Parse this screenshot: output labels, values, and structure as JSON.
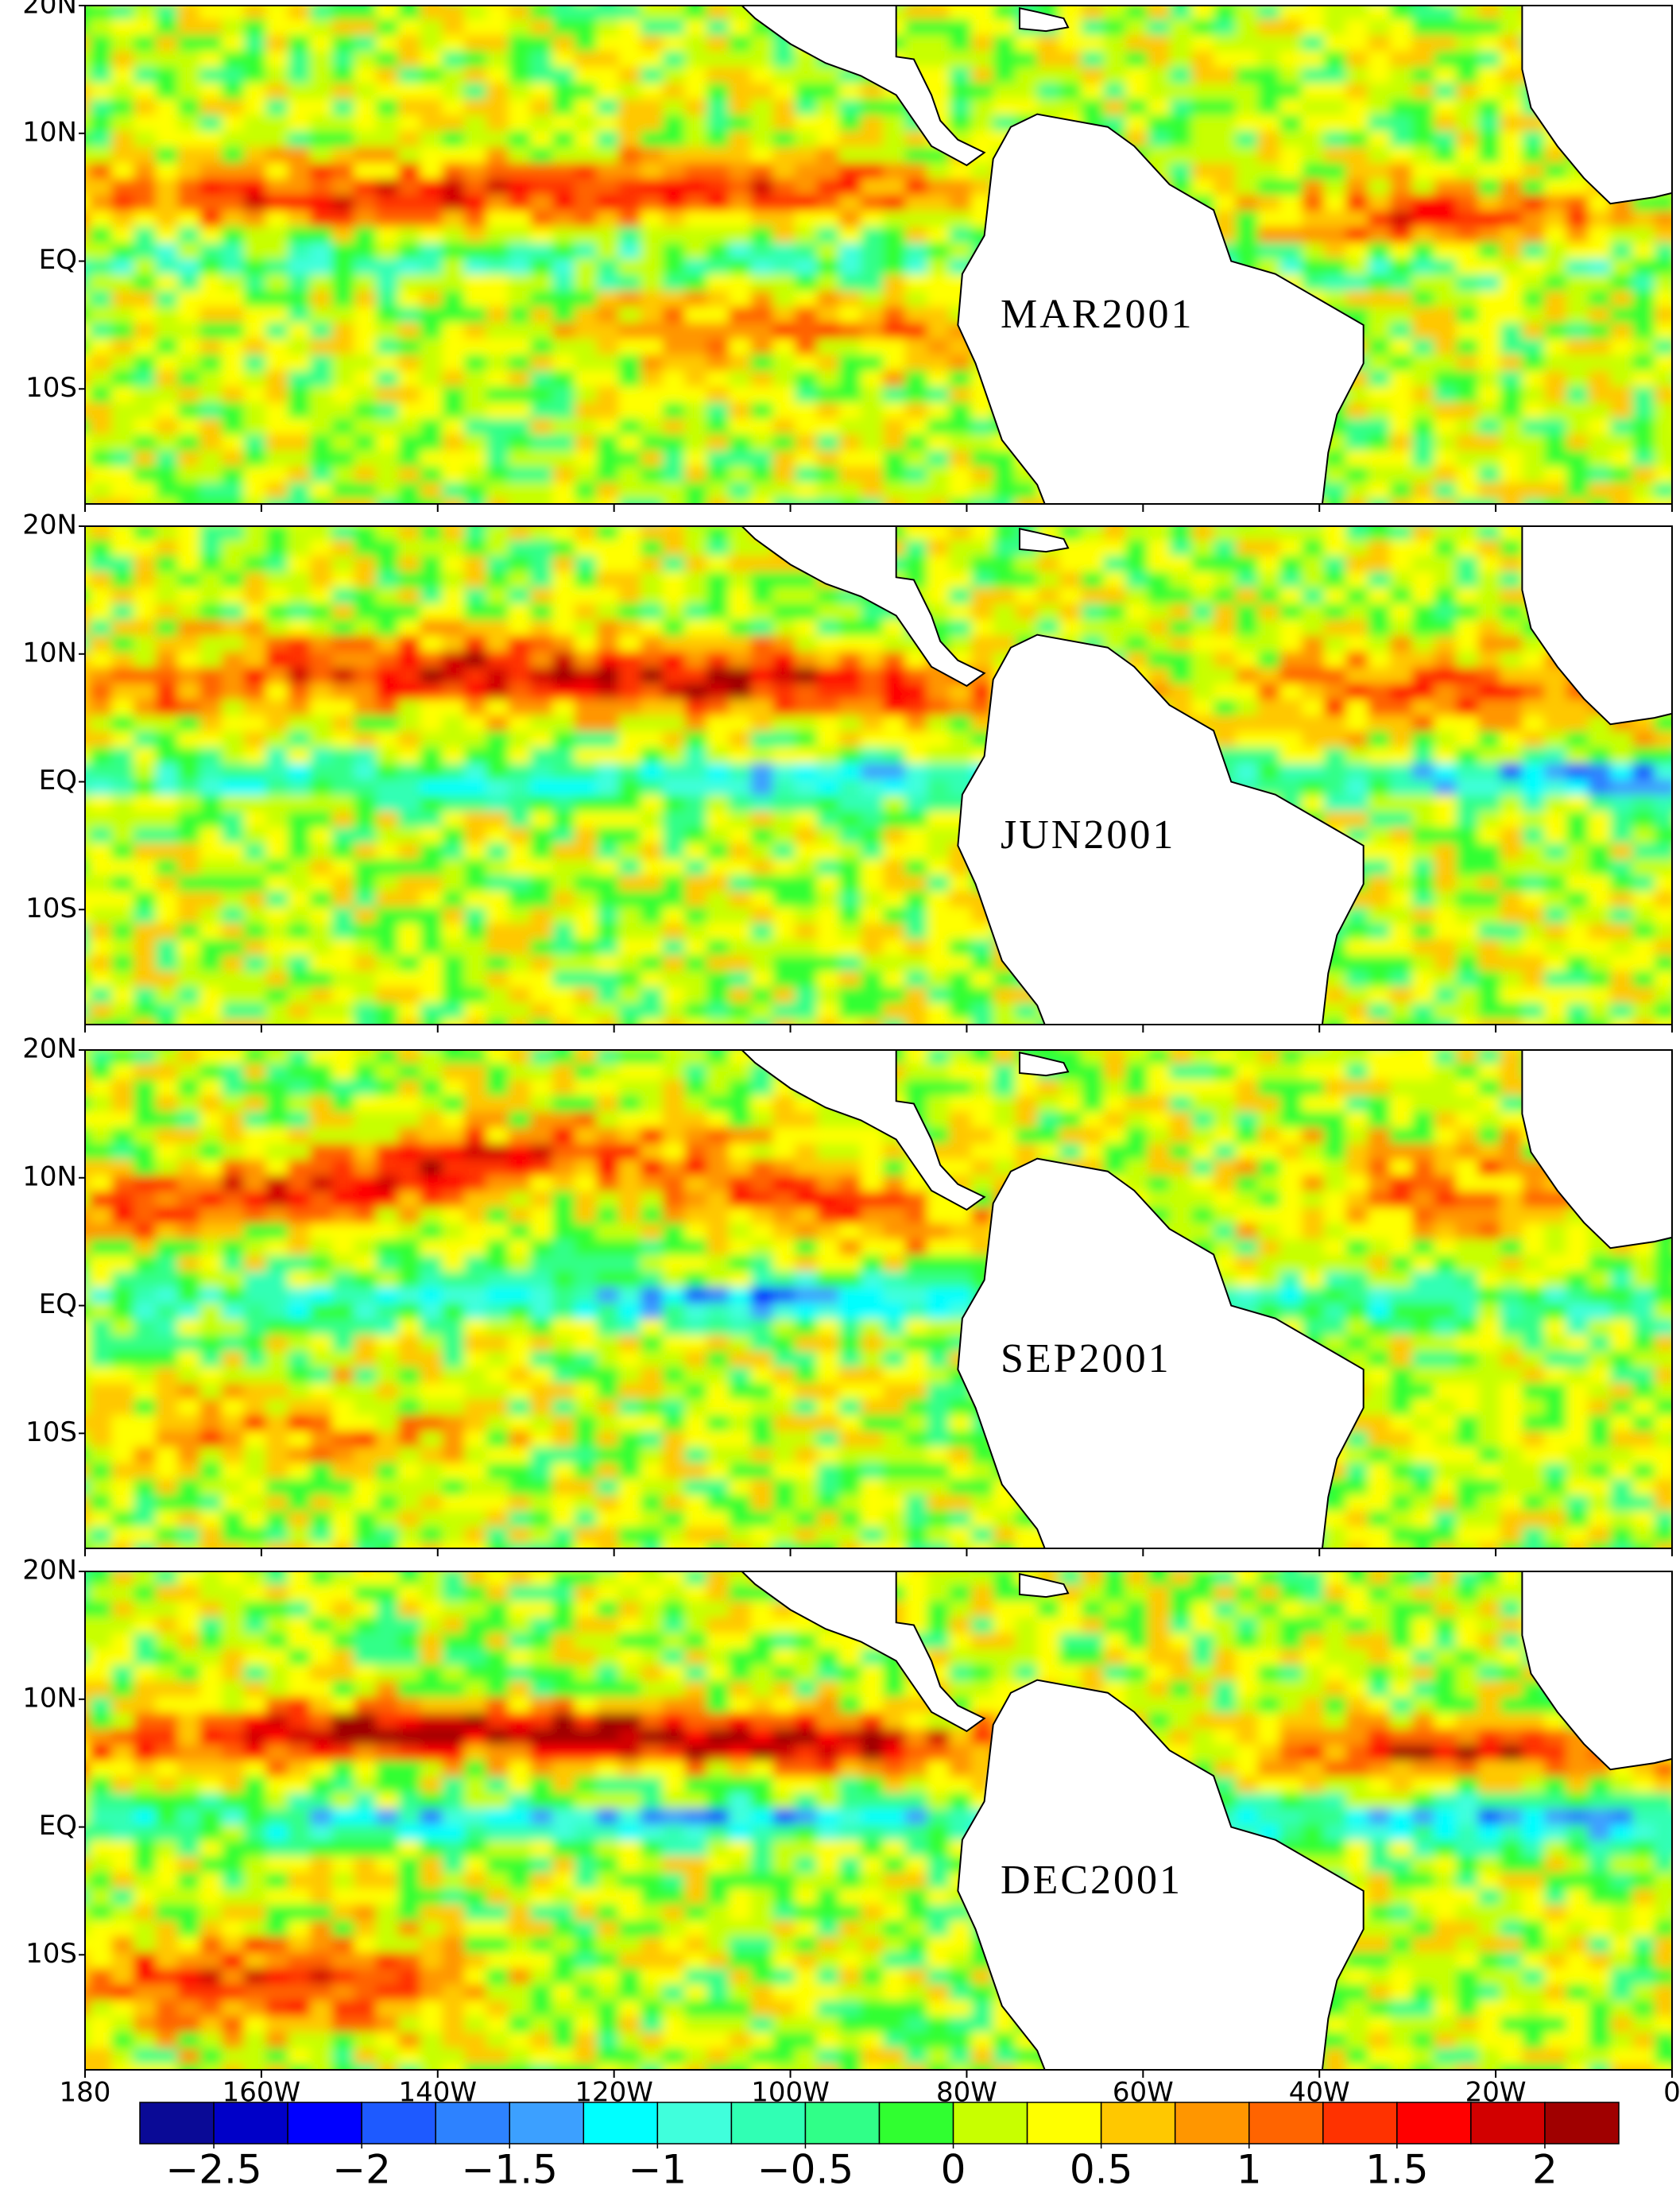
{
  "chart_data": {
    "type": "map",
    "panels": [
      {
        "title": "MAR2001"
      },
      {
        "title": "JUN2001"
      },
      {
        "title": "SEP2001"
      },
      {
        "title": "DEC2001"
      }
    ],
    "xlim": [
      -180,
      0
    ],
    "ylim": [
      -19,
      20
    ],
    "xticks": [
      {
        "value": -180,
        "label": "180"
      },
      {
        "value": -160,
        "label": "160W"
      },
      {
        "value": -140,
        "label": "140W"
      },
      {
        "value": -120,
        "label": "120W"
      },
      {
        "value": -100,
        "label": "100W"
      },
      {
        "value": -80,
        "label": "80W"
      },
      {
        "value": -60,
        "label": "60W"
      },
      {
        "value": -40,
        "label": "40W"
      },
      {
        "value": -20,
        "label": "20W"
      },
      0
    ],
    "yticks": [
      {
        "value": 20,
        "label": "20N"
      },
      {
        "value": 10,
        "label": "10N"
      },
      {
        "value": 0,
        "label": "EQ"
      },
      {
        "value": -10,
        "label": "10S"
      }
    ],
    "colorbar": {
      "lim": [
        -2.75,
        2.25
      ],
      "ticks": [
        {
          "value": -2.5,
          "label": "−2.5"
        },
        {
          "value": -2,
          "label": "−2"
        },
        {
          "value": -1.5,
          "label": "−1.5"
        },
        {
          "value": -1,
          "label": "−1"
        },
        {
          "value": -0.5,
          "label": "−0.5"
        },
        0,
        0.5,
        1,
        1.5,
        2
      ],
      "colors": [
        "#0a0a96",
        "#0000c8",
        "#0000ff",
        "#1e5aff",
        "#2d82ff",
        "#3ca0ff",
        "#00ffff",
        "#40ffdc",
        "#30ffb4",
        "#30ff88",
        "#30ff30",
        "#c8ff00",
        "#ffff00",
        "#ffc800",
        "#ff9600",
        "#ff6400",
        "#ff3200",
        "#ff0000",
        "#d20000",
        "#a00000"
      ]
    }
  }
}
